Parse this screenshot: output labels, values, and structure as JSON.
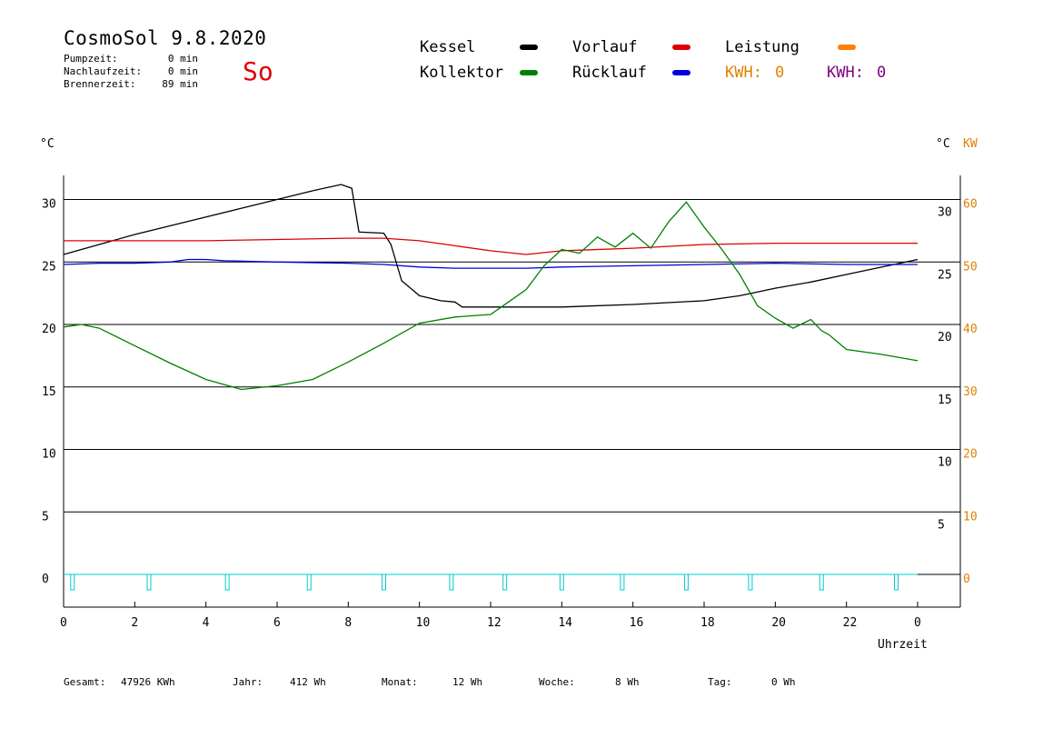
{
  "header": {
    "title": "CosmoSol 9.8.2020",
    "day": "So",
    "stats": [
      {
        "label": "Pumpzeit:",
        "value": "0 min"
      },
      {
        "label": "Nachlaufzeit:",
        "value": "0 min"
      },
      {
        "label": "Brennerzeit:",
        "value": "89 min"
      }
    ]
  },
  "legend": {
    "kessel": {
      "label": "Kessel",
      "color": "#000000"
    },
    "vorlauf": {
      "label": "Vorlauf",
      "color": "#dd0000"
    },
    "leistung": {
      "label": "Leistung",
      "color": "#ff8000"
    },
    "kollektor": {
      "label": "Kollektor",
      "color": "#008000"
    },
    "ruecklauf": {
      "label": "Rücklauf",
      "color": "#0000dd"
    },
    "kwh_orange": {
      "label": "KWH:",
      "value": "0",
      "color": "#e08000"
    },
    "kwh_purple": {
      "label": "KWH:",
      "value": "0",
      "color": "#800080"
    }
  },
  "axes": {
    "y_left_unit": "°C",
    "y_right_unit": "°C",
    "y_right2_unit": "KW",
    "x_label": "Uhrzeit"
  },
  "footer": [
    {
      "label": "Gesamt:",
      "value": "47926 KWh"
    },
    {
      "label": "Jahr:",
      "value": "412 Wh"
    },
    {
      "label": "Monat:",
      "value": "12 Wh"
    },
    {
      "label": "Woche:",
      "value": "8 Wh"
    },
    {
      "label": "Tag:",
      "value": "0 Wh"
    }
  ],
  "chart_data": {
    "type": "line",
    "x_ticks": [
      "0",
      "2",
      "4",
      "6",
      "8",
      "10",
      "12",
      "14",
      "16",
      "18",
      "20",
      "22",
      "0"
    ],
    "x_range": [
      0,
      24
    ],
    "y_left_ticks": [
      "0",
      "5",
      "10",
      "15",
      "20",
      "25",
      "30"
    ],
    "y_right_ticks": [
      "5",
      "10",
      "15",
      "20",
      "25",
      "30"
    ],
    "y_right2_ticks": [
      "0",
      "10",
      "20",
      "30",
      "40",
      "50",
      "60"
    ],
    "ylim": [
      0,
      32
    ],
    "y2lim": [
      0,
      64
    ],
    "grid": true,
    "series": [
      {
        "name": "Kessel",
        "color": "#000000",
        "x": [
          0,
          1,
          2,
          3,
          4,
          5,
          6,
          7,
          7.8,
          8.1,
          8.3,
          9.0,
          9.2,
          9.5,
          10.0,
          10.6,
          11.0,
          11.2,
          12,
          14,
          16,
          18,
          19,
          20,
          21,
          22,
          23,
          24
        ],
        "y": [
          25.6,
          26.4,
          27.2,
          27.9,
          28.6,
          29.3,
          30.0,
          30.7,
          31.2,
          30.9,
          27.4,
          27.3,
          26.4,
          23.5,
          22.3,
          21.9,
          21.8,
          21.4,
          21.4,
          21.4,
          21.6,
          21.9,
          22.3,
          22.9,
          23.4,
          24.0,
          24.6,
          25.2
        ]
      },
      {
        "name": "Vorlauf",
        "color": "#dd0000",
        "x": [
          0,
          2,
          4,
          6,
          8,
          9,
          10,
          11,
          12,
          13,
          14,
          16,
          18,
          20,
          22,
          24
        ],
        "y": [
          26.7,
          26.7,
          26.7,
          26.8,
          26.9,
          26.9,
          26.7,
          26.3,
          25.9,
          25.6,
          25.9,
          26.1,
          26.4,
          26.5,
          26.5,
          26.5
        ]
      },
      {
        "name": "Rücklauf",
        "color": "#0000dd",
        "x": [
          0,
          1,
          2,
          3,
          3.5,
          4,
          4.5,
          6,
          8,
          9,
          10,
          11,
          12,
          13,
          14,
          16,
          18,
          20,
          22,
          24
        ],
        "y": [
          24.8,
          24.9,
          24.9,
          25.0,
          25.2,
          25.2,
          25.1,
          25.0,
          24.9,
          24.8,
          24.6,
          24.5,
          24.5,
          24.5,
          24.6,
          24.7,
          24.8,
          24.9,
          24.8,
          24.8
        ]
      },
      {
        "name": "Kollektor",
        "color": "#008000",
        "x": [
          0,
          0.5,
          1,
          2,
          3,
          4,
          5,
          6,
          7,
          8,
          9,
          10,
          11,
          12,
          12.5,
          13,
          13.5,
          14,
          14.5,
          15,
          15.5,
          16,
          16.5,
          17,
          17.5,
          18,
          18.5,
          19,
          19.5,
          20,
          20.5,
          21,
          21.3,
          21.5,
          22,
          23,
          24
        ],
        "y": [
          19.8,
          20.0,
          19.7,
          18.3,
          16.9,
          15.6,
          14.8,
          15.1,
          15.6,
          17.0,
          18.5,
          20.1,
          20.6,
          20.8,
          21.8,
          22.8,
          24.7,
          26.0,
          25.7,
          27.0,
          26.2,
          27.3,
          26.1,
          28.2,
          29.8,
          27.8,
          26.0,
          24.0,
          21.5,
          20.5,
          19.7,
          20.4,
          19.5,
          19.2,
          18.0,
          17.6,
          17.1
        ]
      }
    ],
    "marker_series": {
      "name": "Leistung",
      "color": "#00cccc",
      "x": [
        0.25,
        2.4,
        4.6,
        6.9,
        9.0,
        10.9,
        12.4,
        14.0,
        15.7,
        17.5,
        19.3,
        21.3,
        23.4
      ]
    }
  }
}
